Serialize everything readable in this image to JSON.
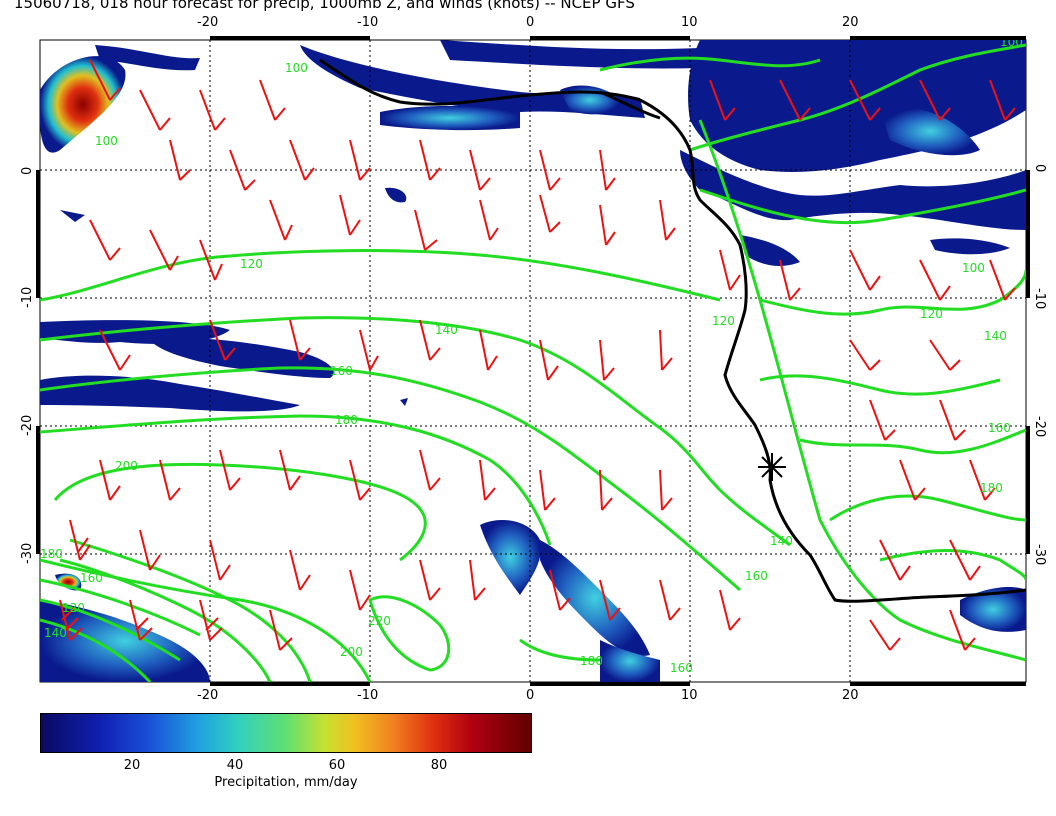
{
  "title": "15060718, 018 hour forecast for precip, 1000mb Z, and winds (knots) -- NCEP GFS",
  "map": {
    "lon_range": [
      -30,
      30
    ],
    "lat_range": [
      -40,
      10
    ],
    "lon_ticks": [
      "-20",
      "-10",
      "0",
      "10",
      "20"
    ],
    "lat_ticks": [
      "0",
      "-10",
      "-20",
      "-30"
    ],
    "contour_labels": [
      "100",
      "100",
      "120",
      "120",
      "140",
      "160",
      "180",
      "200",
      "220",
      "200",
      "180",
      "160",
      "140",
      "160",
      "180",
      "120",
      "140",
      "100",
      "160",
      "180",
      "120",
      "140",
      "100",
      "160"
    ],
    "colors": {
      "contour": "#22dd22",
      "wind_barb": "#ee1111",
      "coastline": "#000000",
      "precip_low": "#0a1a8c",
      "precip_high": "#8b0000"
    },
    "marker": "site-star"
  },
  "colorbar": {
    "ticks": [
      "20",
      "40",
      "60",
      "80"
    ],
    "label": "Precipitation, mm/day",
    "range": [
      0,
      97
    ]
  }
}
